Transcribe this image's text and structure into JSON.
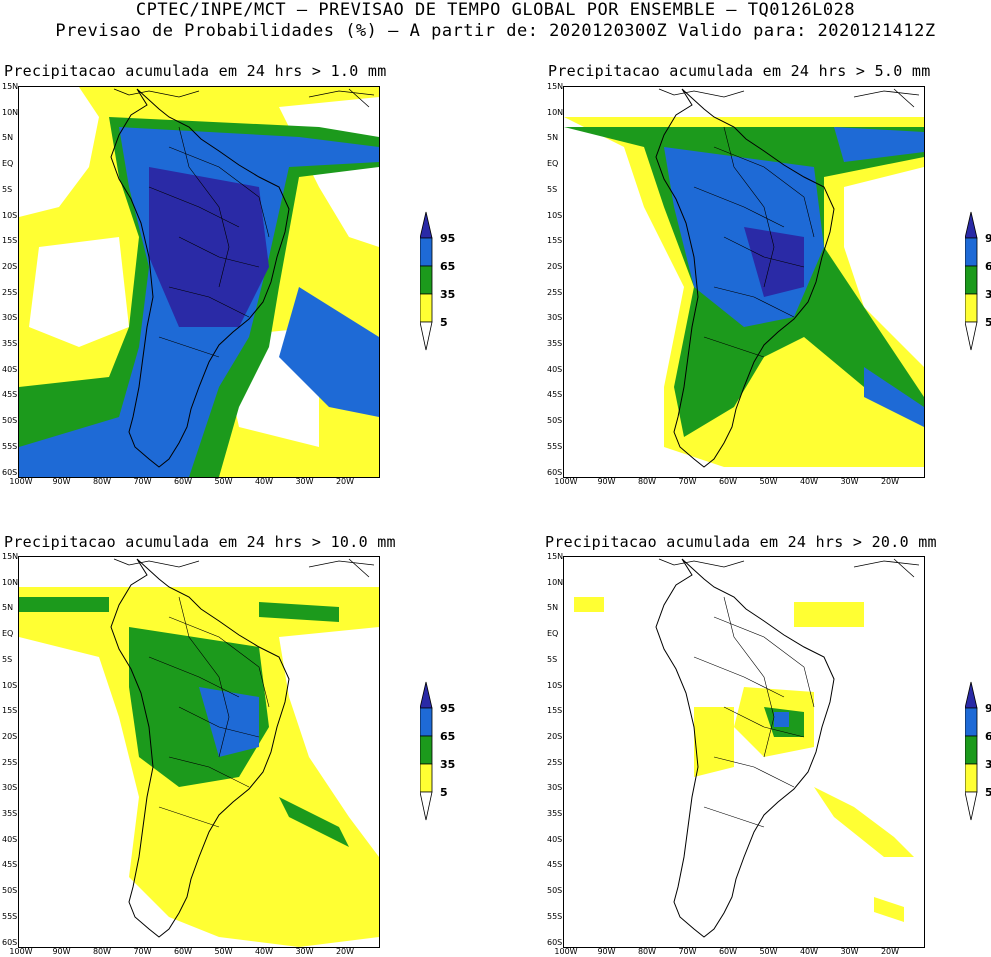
{
  "header": {
    "line1": "CPTEC/INPE/MCT – PREVISAO DE TEMPO GLOBAL POR ENSEMBLE – TQ0126L028",
    "line2": "Previsao de Probabilidades (%) –  A partir de: 2020120300Z  Valido para: 2020121412Z"
  },
  "panels": [
    {
      "title": "Precipitacao acumulada em 24 hrs > 1.0 mm"
    },
    {
      "title": "Precipitacao acumulada em 24 hrs > 5.0 mm"
    },
    {
      "title": "Precipitacao acumulada em 24 hrs > 10.0 mm"
    },
    {
      "title": "Precipitacao acumulada em 24 hrs > 20.0 mm"
    }
  ],
  "lat_labels": [
    "15N",
    "10N",
    "5N",
    "EQ",
    "5S",
    "10S",
    "15S",
    "20S",
    "25S",
    "30S",
    "35S",
    "40S",
    "45S",
    "50S",
    "55S",
    "60S"
  ],
  "lon_labels": [
    "100W",
    "90W",
    "80W",
    "70W",
    "60W",
    "50W",
    "40W",
    "30W",
    "20W"
  ],
  "legend": {
    "labels": [
      "95",
      "65",
      "35",
      "5"
    ],
    "colors": {
      "c95": "#2a2aa6",
      "c65": "#1e6ad6",
      "c35": "#1c9a1c",
      "c5": "#ffff33",
      "c0": "#ffffff"
    }
  },
  "colors": {
    "yellow": "#ffff33",
    "green": "#1c9a1c",
    "blue": "#1e6ad6",
    "navy": "#2a2aa6"
  }
}
